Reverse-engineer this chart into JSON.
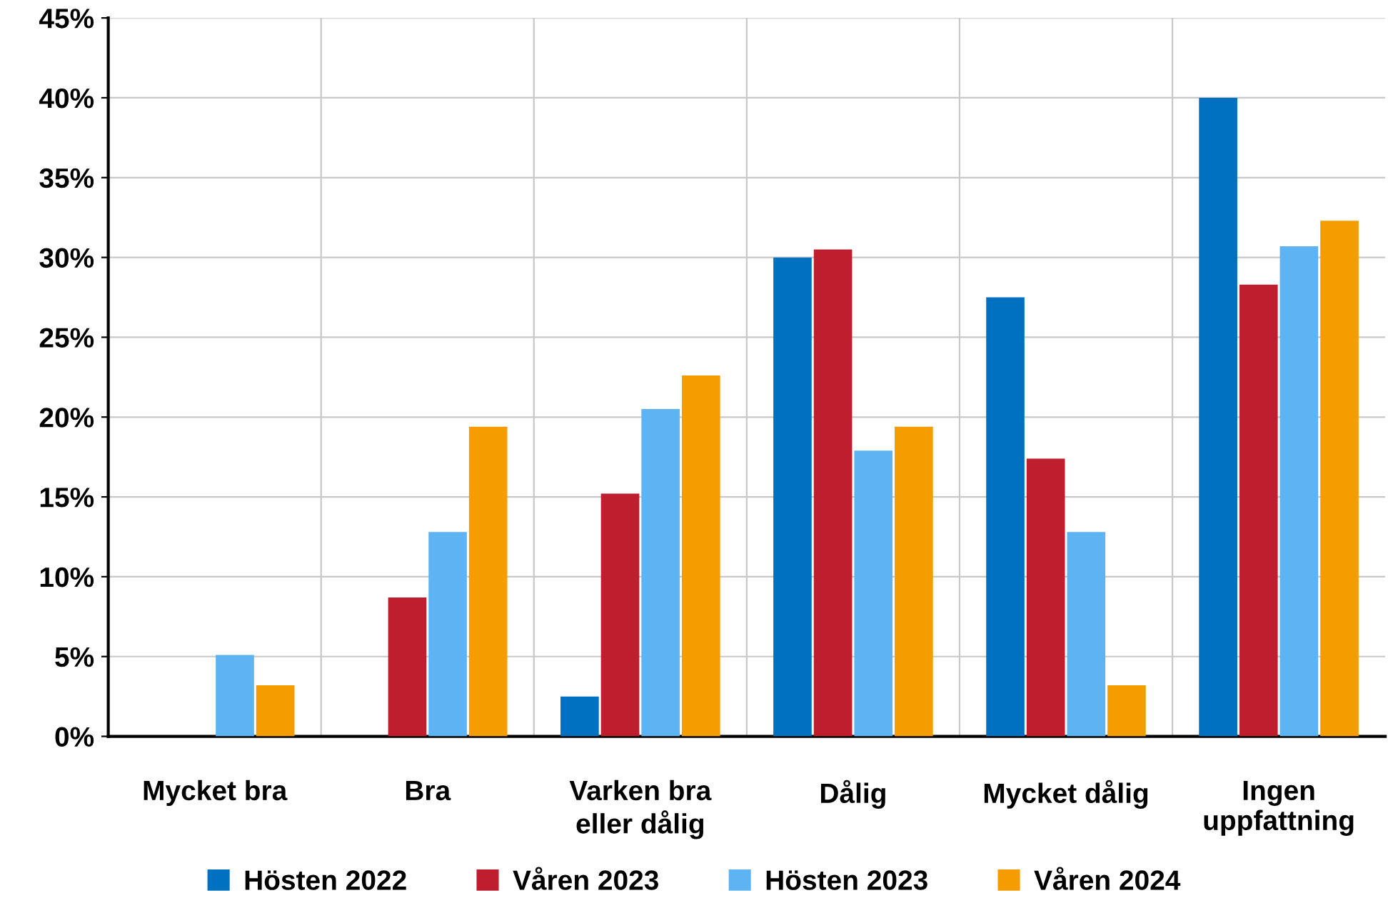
{
  "chart_data": {
    "type": "bar",
    "categories": [
      "Mycket bra",
      "Bra",
      "Varken bra\neller dålig",
      "Dålig",
      "Mycket dålig",
      "Ingen\nuppfattning"
    ],
    "series": [
      {
        "name": "Hösten 2022",
        "color": "#0070c0",
        "values": [
          null,
          null,
          2.5,
          30.0,
          27.5,
          40.0
        ]
      },
      {
        "name": "Våren 2023",
        "color": "#be1e2d",
        "values": [
          null,
          8.7,
          15.2,
          30.5,
          17.4,
          28.3
        ]
      },
      {
        "name": "Hösten 2023",
        "color": "#5eb4f2",
        "values": [
          5.1,
          12.8,
          20.5,
          17.9,
          12.8,
          30.7
        ]
      },
      {
        "name": "Våren 2024",
        "color": "#f59c00",
        "values": [
          3.2,
          19.4,
          22.6,
          19.4,
          3.2,
          32.3
        ]
      }
    ],
    "ylim": [
      0,
      45
    ],
    "yticks": [
      {
        "value": 0,
        "label": "0%"
      },
      {
        "value": 5,
        "label": "5%"
      },
      {
        "value": 10,
        "label": "10%"
      },
      {
        "value": 15,
        "label": "15%"
      },
      {
        "value": 20,
        "label": "20%"
      },
      {
        "value": 25,
        "label": "25%"
      },
      {
        "value": 30,
        "label": "30%"
      },
      {
        "value": 35,
        "label": "35%"
      },
      {
        "value": 40,
        "label": "40%"
      },
      {
        "value": 45,
        "label": "45%"
      }
    ],
    "grid": true,
    "legend": "bottom"
  }
}
